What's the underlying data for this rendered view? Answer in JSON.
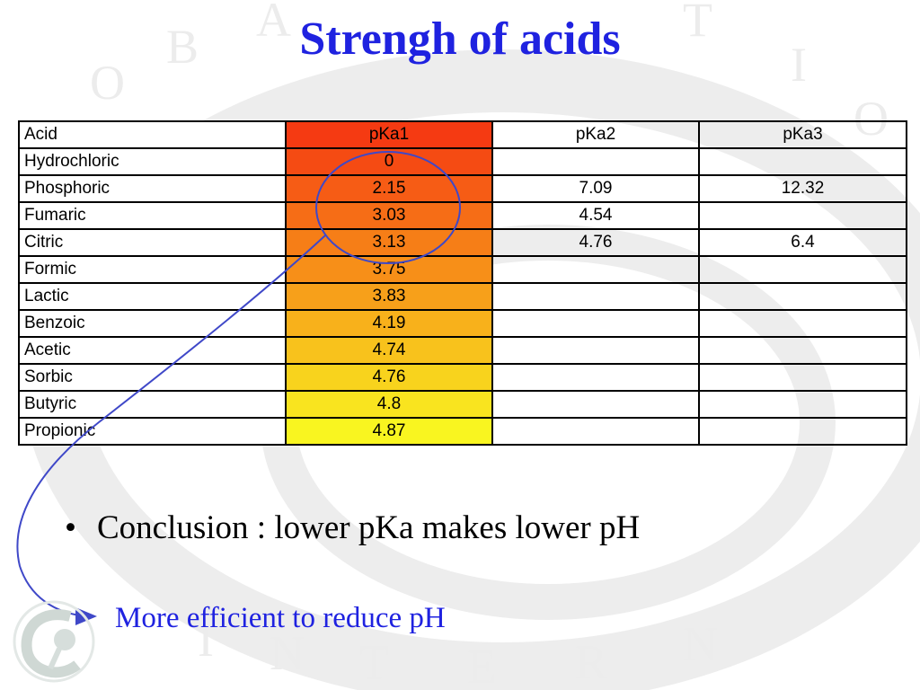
{
  "slide": {
    "title": "Strengh of acids",
    "bullet": "Conclusion : lower pKa makes lower pH",
    "note": "More efficient to reduce pH"
  },
  "table": {
    "headers": [
      "Acid",
      "pKa1",
      "pKa2",
      "pKa3"
    ],
    "rows": [
      {
        "acid": "Hydrochloric",
        "pka1": "0",
        "pka2": "",
        "pka3": ""
      },
      {
        "acid": "Phosphoric",
        "pka1": "2.15",
        "pka2": "7.09",
        "pka3": "12.32"
      },
      {
        "acid": "Fumaric",
        "pka1": "3.03",
        "pka2": "4.54",
        "pka3": ""
      },
      {
        "acid": "Citric",
        "pka1": "3.13",
        "pka2": "4.76",
        "pka3": "6.4"
      },
      {
        "acid": "Formic",
        "pka1": "3.75",
        "pka2": "",
        "pka3": ""
      },
      {
        "acid": "Lactic",
        "pka1": "3.83",
        "pka2": "",
        "pka3": ""
      },
      {
        "acid": "Benzoic",
        "pka1": "4.19",
        "pka2": "",
        "pka3": ""
      },
      {
        "acid": "Acetic",
        "pka1": "4.74",
        "pka2": "",
        "pka3": ""
      },
      {
        "acid": "Sorbic",
        "pka1": "4.76",
        "pka2": "",
        "pka3": ""
      },
      {
        "acid": "Butyric",
        "pka1": "4.8",
        "pka2": "",
        "pka3": ""
      },
      {
        "acid": "Propionic",
        "pka1": "4.87",
        "pka2": "",
        "pka3": ""
      }
    ]
  },
  "colors": {
    "title": "#1f22e0",
    "gradient_top": "#f53a12",
    "gradient_bottom": "#f9f520",
    "annotation": "#3f48c8"
  },
  "watermark": {
    "letters": "GLOBAL NUTRITION INTERNATIONAL",
    "logo": "global-nutrition-logo"
  }
}
